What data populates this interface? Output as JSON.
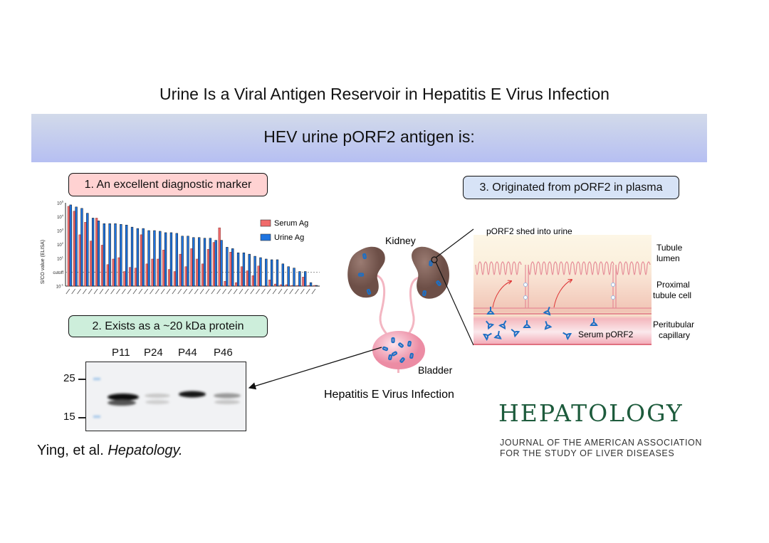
{
  "title": "Urine Is a Viral Antigen Reservoir in Hepatitis E Virus Infection",
  "banner": "HEV urine pORF2 antigen is:",
  "findings": {
    "one": "1. An excellent diagnostic marker",
    "two": "2. Exists as a ~20 kDa protein",
    "three": "3. Originated from pORF2 in plasma"
  },
  "blot": {
    "lanes": [
      "P11",
      "P24",
      "P44",
      "P46"
    ],
    "markers": [
      "25",
      "15"
    ]
  },
  "kidney_diagram": {
    "kidney_label": "Kidney",
    "bladder_label": "Bladder",
    "caption": "Hepatitis E Virus Infection"
  },
  "tubule": {
    "shed_label": "pORF2 shed into urine",
    "lumen_label": [
      "Tubule",
      "lumen"
    ],
    "cell_label": [
      "Proximal",
      "tubule cell"
    ],
    "capillary_label": [
      "Peritubular",
      "capillary"
    ],
    "serum_label": "Serum pORF2"
  },
  "citation": {
    "authors": "Ying, et al.",
    "journal": "Hepatology."
  },
  "logo": {
    "name": "HEPATOLOGY",
    "sub1": "JOURNAL OF THE AMERICAN ASSOCIATION",
    "sub2": "FOR THE STUDY OF LIVER DISEASES"
  },
  "colors": {
    "serum": "#f06a6a",
    "urine": "#1e74e0",
    "logo": "#1d5b3c",
    "kidney": "#7a5a52",
    "bladder": "#f4a7b9"
  },
  "chart_data": {
    "type": "bar",
    "ylabel": "S/CO value (ELISA)",
    "yscale": "log",
    "ylim": [
      0.1,
      100000
    ],
    "yticks": [
      "10^5",
      "10^4",
      "10^3",
      "10^2",
      "10^1",
      "cutoff",
      "10^-1"
    ],
    "cutoff": 1,
    "legend_position": "top-right",
    "series": [
      {
        "name": "Serum Ag",
        "log10_values": [
          4.75,
          4.4,
          2.7,
          3.6,
          2.25,
          3.9,
          1.95,
          0.55,
          0.95,
          1.05,
          0.05,
          0.35,
          0.3,
          2.7,
          0.6,
          0.95,
          0.95,
          1.6,
          0.2,
          0.05,
          1.3,
          0.4,
          1.7,
          0.95,
          0.6,
          1.65,
          2.15,
          3.2,
          -0.65,
          1.45,
          -0.75,
          0.4,
          0.1,
          -0.25,
          0.45,
          -1,
          -0.55,
          -0.85,
          -0.9,
          -0.9,
          -0.95,
          -0.95,
          -0.35,
          -0.95,
          -0.95
        ]
      },
      {
        "name": "Urine Ag",
        "log10_values": [
          4.85,
          4.7,
          4.6,
          4.25,
          3.9,
          3.7,
          3.5,
          3.5,
          3.5,
          3.45,
          3.4,
          3.25,
          3.15,
          3.15,
          3.0,
          3.0,
          2.95,
          2.85,
          2.85,
          2.8,
          2.6,
          2.6,
          2.5,
          2.5,
          2.45,
          2.45,
          2.3,
          2.3,
          1.8,
          1.7,
          1.4,
          1.4,
          1.3,
          1.15,
          1.05,
          0.95,
          0.9,
          0.9,
          0.6,
          0.4,
          0.3,
          0.05,
          0.05,
          -0.75,
          -0.95
        ]
      }
    ]
  }
}
